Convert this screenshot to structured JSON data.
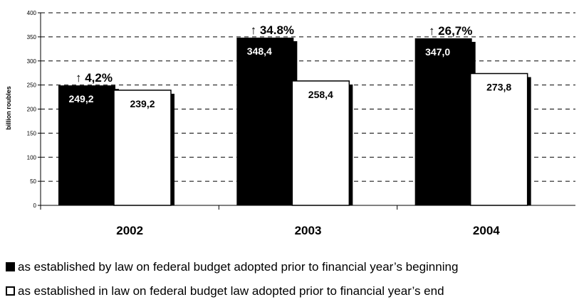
{
  "chart_data": {
    "type": "bar",
    "categories": [
      "2002",
      "2003",
      "2004"
    ],
    "ylabel": "billion roubles",
    "ylim": [
      0,
      400
    ],
    "yticks": [
      0,
      50,
      100,
      150,
      200,
      250,
      300,
      350,
      400
    ],
    "grid": true,
    "gridStyle": "dashed-horizontal",
    "series": [
      {
        "name": "as established by law on federal budget adopted prior to financial year’s beginning",
        "color": "#000000",
        "values": [
          249.2,
          348.4,
          347.0
        ],
        "labels": [
          "249,2",
          "348,4",
          "347,0"
        ]
      },
      {
        "name": "as established in law on federal budget law adopted prior to financial year’s end",
        "color": "#ffffff",
        "values": [
          239.2,
          258.4,
          273.8
        ],
        "labels": [
          "239,2",
          "258,4",
          "273,8"
        ]
      }
    ],
    "annotations": [
      "↑ 4,2%",
      "↑ 34.8%",
      "↑ 26,7%"
    ],
    "legend_position": "bottom-left"
  }
}
